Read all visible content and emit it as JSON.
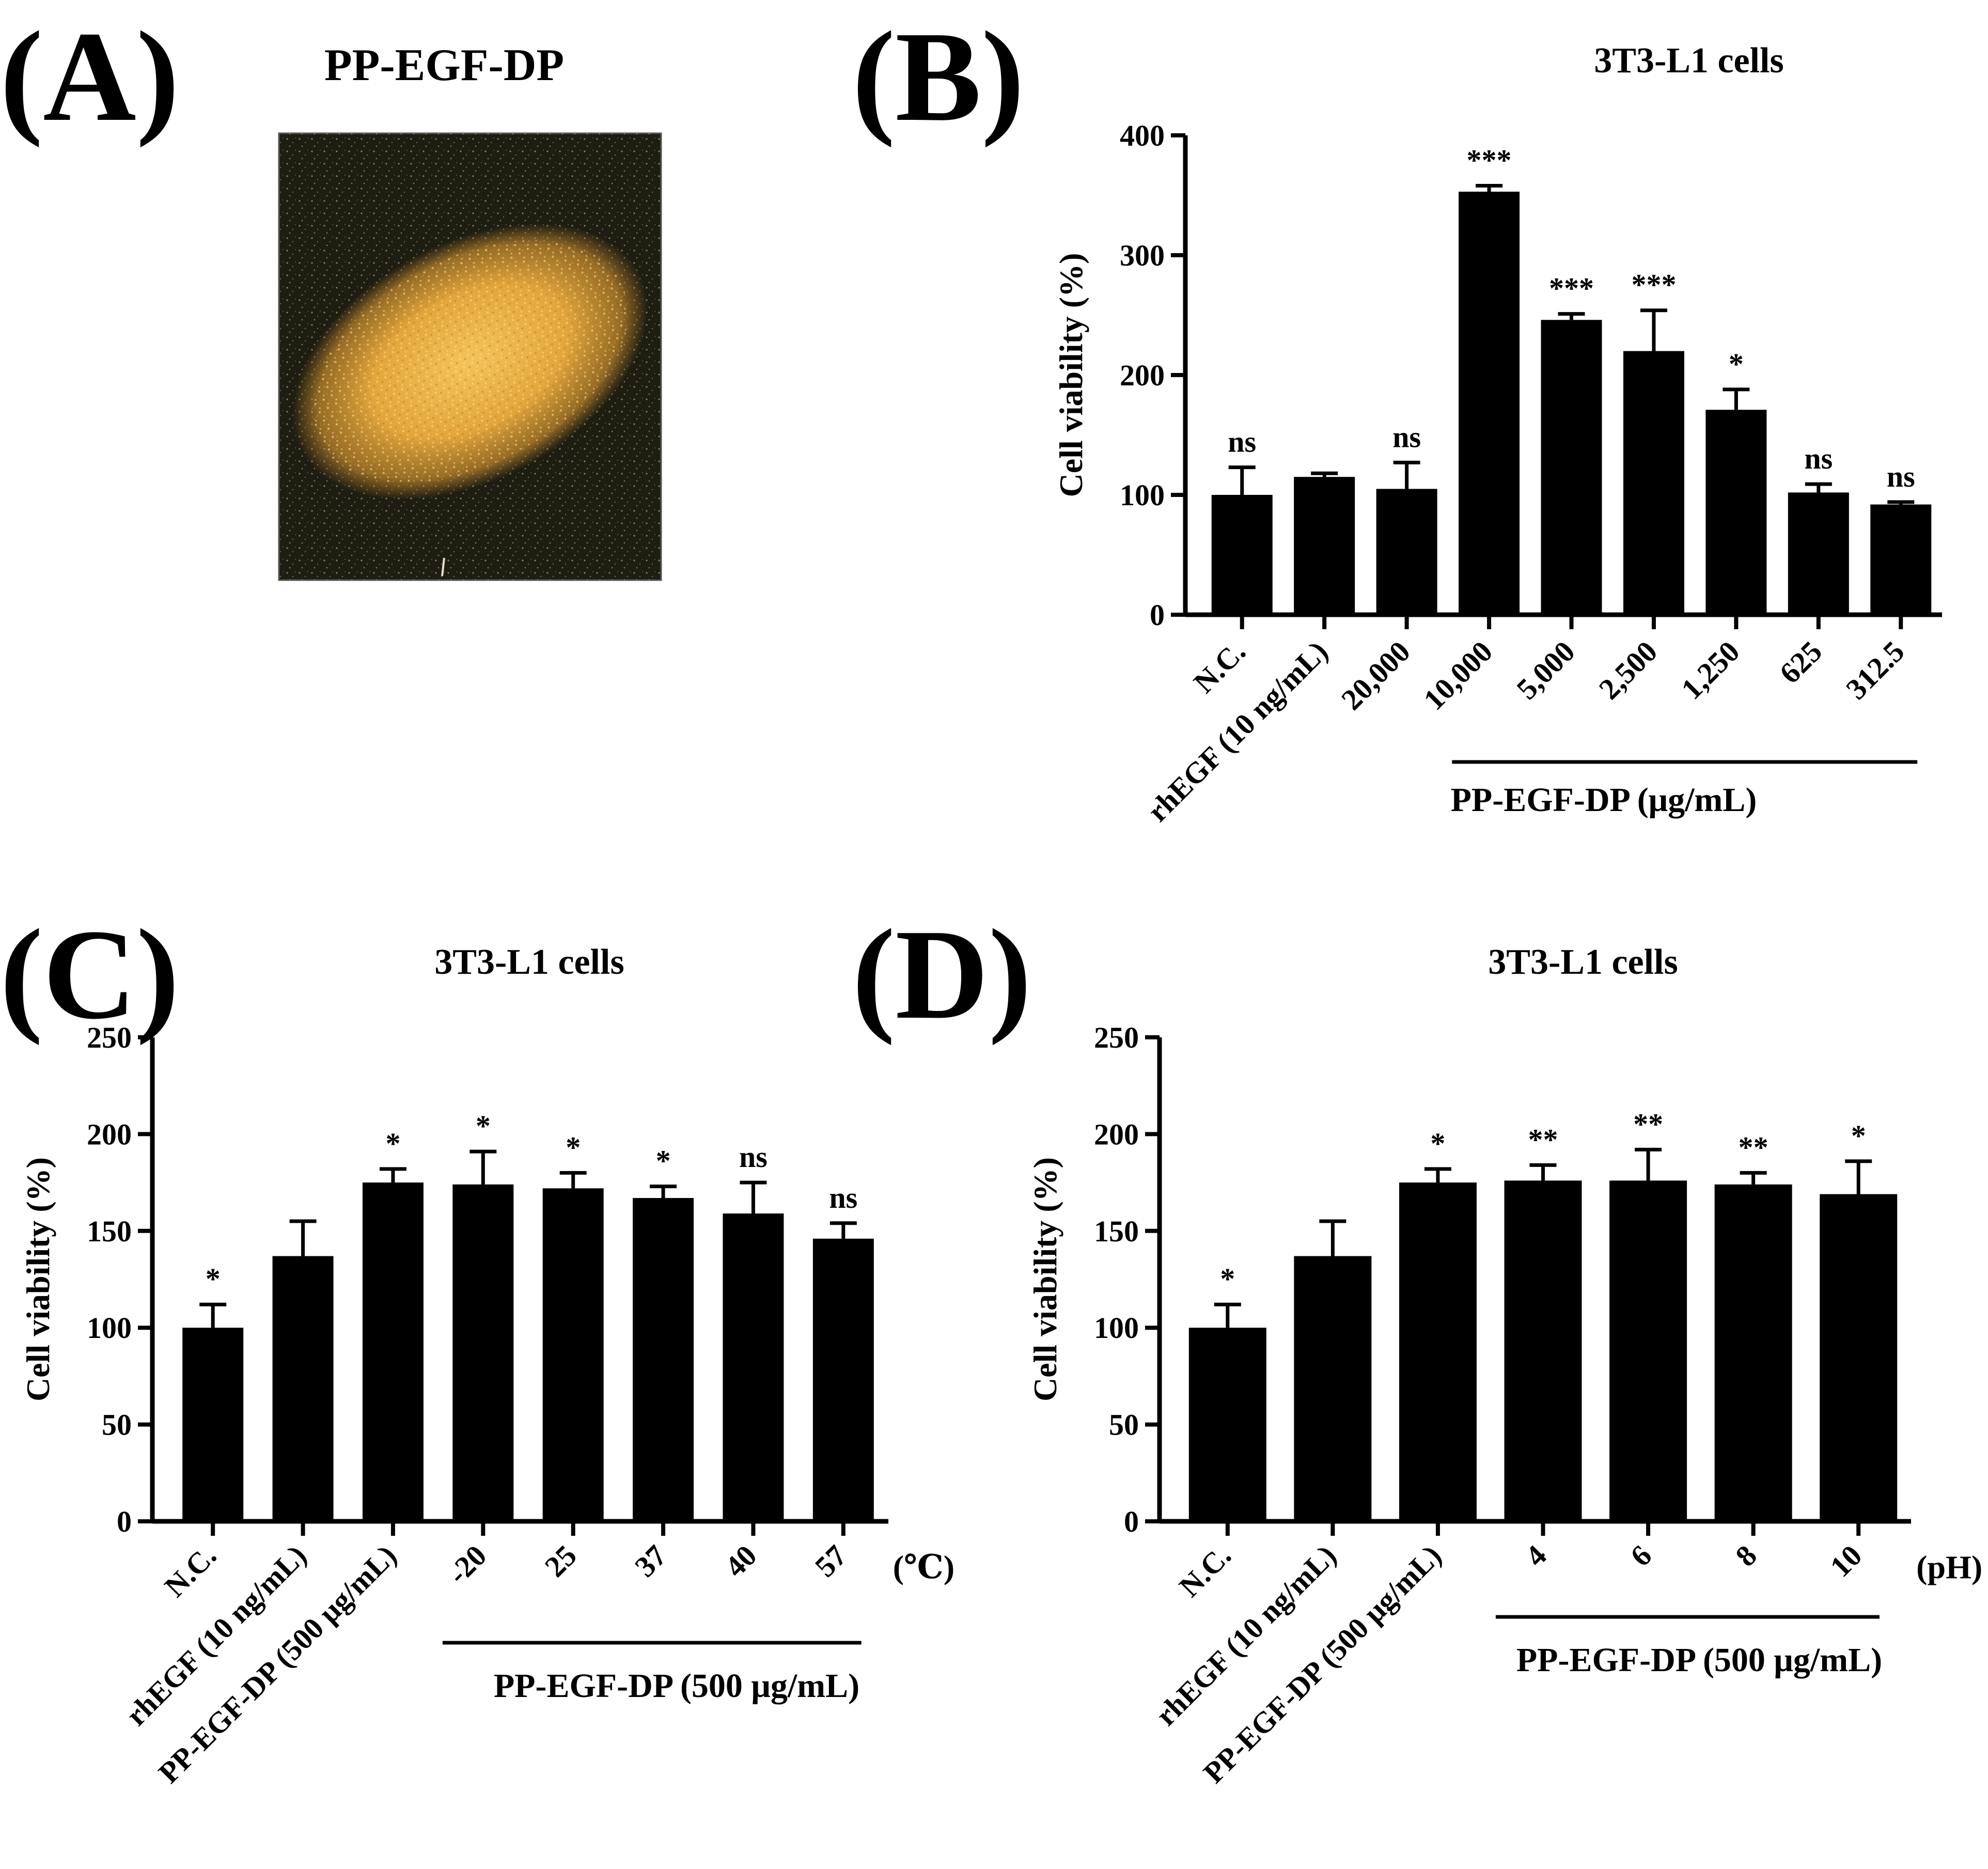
{
  "panel_a": {
    "letter": "(A)",
    "title": "PP-EGF-DP"
  },
  "chart_data": [
    {
      "panel": "(B)",
      "type": "bar",
      "title": "3T3-L1 cells",
      "ylabel": "Cell viability (%)",
      "xlabel": "",
      "ylim": [
        0,
        400
      ],
      "yticks": [
        0,
        100,
        200,
        300,
        400
      ],
      "categories": [
        "N.C.",
        "rhEGF (10 ng/mL)",
        "20,000",
        "10,000",
        "5,000",
        "2,500",
        "1,250",
        "625",
        "312.5"
      ],
      "values": [
        100,
        115,
        105,
        353,
        246,
        220,
        171,
        102,
        92
      ],
      "errors": [
        23,
        3,
        22,
        5,
        5,
        34,
        17,
        7,
        2
      ],
      "significance": [
        "ns",
        "",
        "ns",
        "***",
        "***",
        "***",
        "*",
        "ns",
        "ns"
      ],
      "group_label": "PP-EGF-DP (μg/mL)",
      "group_range": [
        3,
        8
      ],
      "unit_label": ""
    },
    {
      "panel": "(C)",
      "type": "bar",
      "title": "3T3-L1 cells",
      "ylabel": "Cell viability (%)",
      "xlabel": "",
      "ylim": [
        0,
        250
      ],
      "yticks": [
        0,
        50,
        100,
        150,
        200,
        250
      ],
      "categories": [
        "N.C.",
        "rhEGF (10 ng/mL)",
        "PP-EGF-DP (500 μg/mL)",
        "-20",
        "25",
        "37",
        "40",
        "57"
      ],
      "values": [
        100,
        137,
        175,
        174,
        172,
        167,
        159,
        146
      ],
      "errors": [
        12,
        18,
        7,
        17,
        8,
        6,
        16,
        8
      ],
      "significance": [
        "*",
        "",
        "*",
        "*",
        "*",
        "*",
        "ns",
        "ns"
      ],
      "group_label": "PP-EGF-DP (500 μg/mL)",
      "group_range": [
        3,
        7
      ],
      "unit_label": "(℃)"
    },
    {
      "panel": "(D)",
      "type": "bar",
      "title": "3T3-L1 cells",
      "ylabel": "Cell viability (%)",
      "xlabel": "",
      "ylim": [
        0,
        250
      ],
      "yticks": [
        0,
        50,
        100,
        150,
        200,
        250
      ],
      "categories": [
        "N.C.",
        "rhEGF (10 ng/mL)",
        "PP-EGF-DP (500 μg/mL)",
        "4",
        "6",
        "8",
        "10"
      ],
      "values": [
        100,
        137,
        175,
        176,
        176,
        174,
        169
      ],
      "errors": [
        12,
        18,
        7,
        8,
        16,
        6,
        17
      ],
      "significance": [
        "*",
        "",
        "*",
        "**",
        "**",
        "**",
        "*"
      ],
      "group_label": "PP-EGF-DP (500 μg/mL)",
      "group_range": [
        3,
        6
      ],
      "unit_label": "(pH)"
    }
  ],
  "colors": {
    "bar": "#000000",
    "axis": "#000000",
    "photo_bg": "#1e1d12",
    "powder": "#e8b24a"
  }
}
